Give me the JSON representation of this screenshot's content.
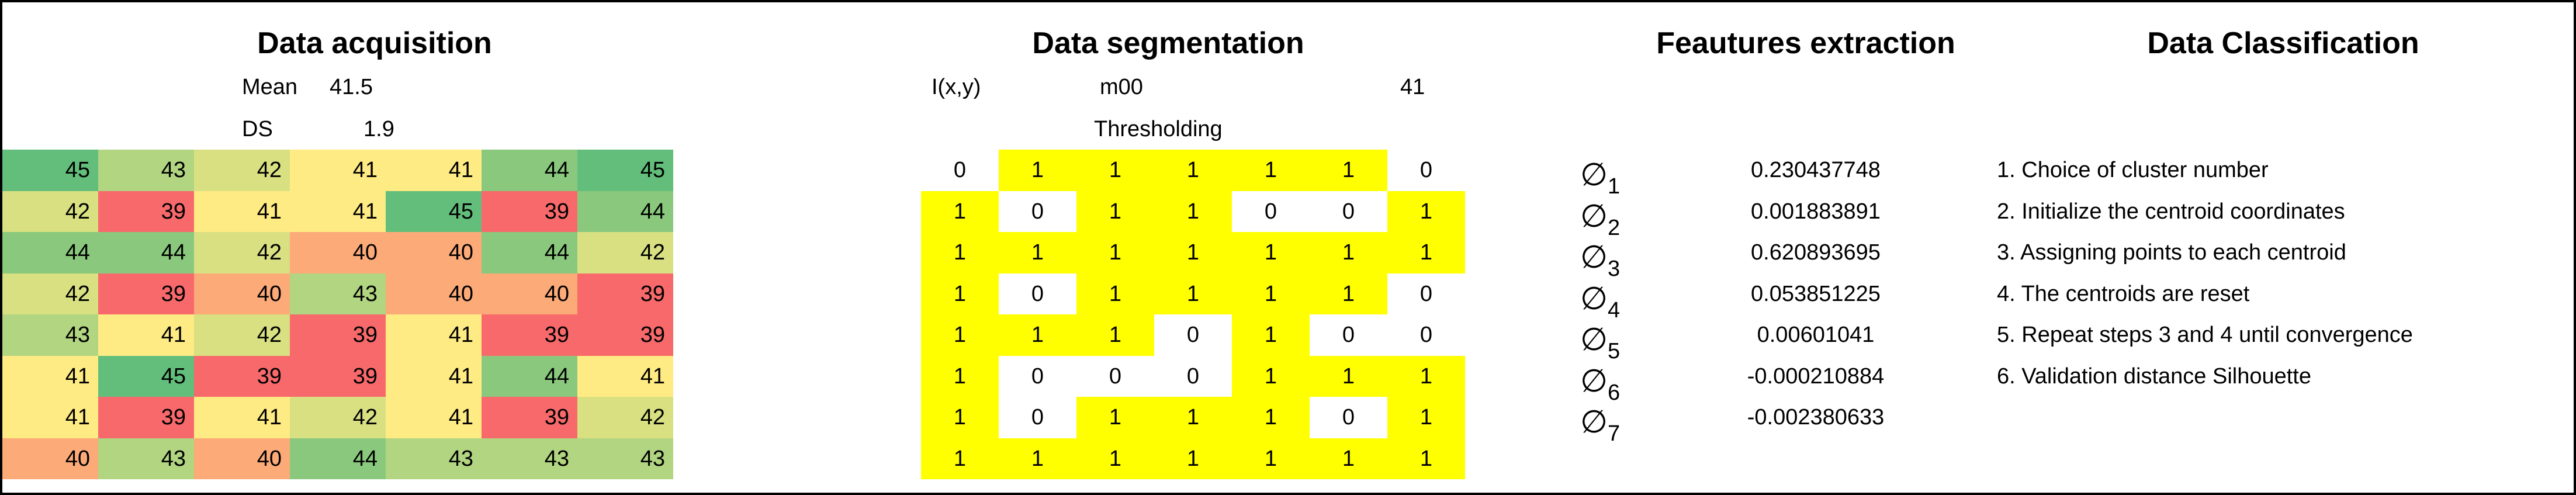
{
  "acquisition": {
    "title": "Data acquisition",
    "mean_label": "Mean",
    "mean": 41.5,
    "ds_label": "DS",
    "ds": 1.9,
    "grid": [
      [
        45,
        43,
        42,
        41,
        41,
        44,
        45
      ],
      [
        42,
        39,
        41,
        41,
        45,
        39,
        44
      ],
      [
        44,
        44,
        42,
        40,
        40,
        44,
        42
      ],
      [
        42,
        39,
        40,
        43,
        40,
        40,
        39
      ],
      [
        43,
        41,
        42,
        39,
        41,
        39,
        39
      ],
      [
        41,
        45,
        39,
        39,
        41,
        44,
        41
      ],
      [
        41,
        39,
        41,
        42,
        41,
        39,
        42
      ],
      [
        40,
        43,
        40,
        44,
        43,
        43,
        43
      ]
    ]
  },
  "segmentation": {
    "title": "Data segmentation",
    "input_label": "I(x,y)",
    "moment_label": "m00",
    "moment": 41,
    "method": "Thresholding",
    "grid": [
      [
        0,
        1,
        1,
        1,
        1,
        1,
        0
      ],
      [
        1,
        0,
        1,
        1,
        0,
        0,
        1
      ],
      [
        1,
        1,
        1,
        1,
        1,
        1,
        1
      ],
      [
        1,
        0,
        1,
        1,
        1,
        1,
        0
      ],
      [
        1,
        1,
        1,
        0,
        1,
        0,
        0
      ],
      [
        1,
        0,
        0,
        0,
        1,
        1,
        1
      ],
      [
        1,
        0,
        1,
        1,
        1,
        0,
        1
      ],
      [
        1,
        1,
        1,
        1,
        1,
        1,
        1
      ]
    ]
  },
  "features": {
    "title": "Feautures extraction",
    "items": [
      {
        "symbol": "∅",
        "index": 1,
        "value": 0.230437748
      },
      {
        "symbol": "∅",
        "index": 2,
        "value": 0.001883891
      },
      {
        "symbol": "∅",
        "index": 3,
        "value": 0.620893695
      },
      {
        "symbol": "∅",
        "index": 4,
        "value": 0.053851225
      },
      {
        "symbol": "∅",
        "index": 5,
        "value": 0.00601041
      },
      {
        "symbol": "∅",
        "index": 6,
        "value": -0.000210884
      },
      {
        "symbol": "∅",
        "index": 7,
        "value": -0.002380633
      }
    ]
  },
  "classification": {
    "title": "Data Classification",
    "steps": [
      "1. Choice of cluster number",
      "2. Initialize the centroid coordinates",
      "3. Assigning points to each centroid",
      "4. The centroids are reset",
      "5. Repeat steps 3 and 4 until convergence",
      "6. Validation distance Silhouette"
    ]
  }
}
